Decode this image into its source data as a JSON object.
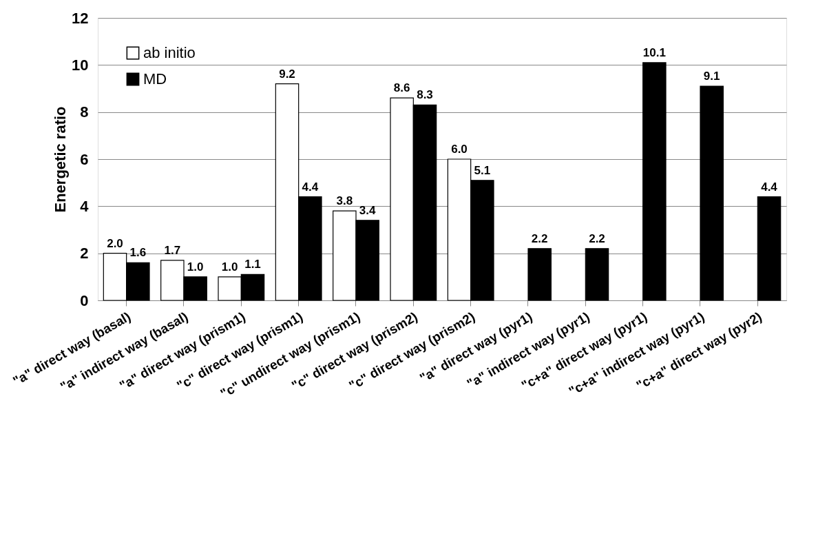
{
  "chart_data": {
    "type": "bar",
    "ylabel": "Energetic ratio",
    "categories": [
      "\"a\" direct way (basal)",
      "\"a\" indirect way (basal)",
      "\"a\" direct way (prism1)",
      "\"c\" direct way (prism1)",
      "\"c\" undirect way (prism1)",
      "\"c\" direct way (prism2)",
      "\"c\" direct way (prism2)",
      "\"a\" direct way (pyr1)",
      "\"a\" indirect way (pyr1)",
      "\"c+a\" direct way (pyr1)",
      "\"c+a\" indirect way (pyr1)",
      "\"c+a\" direct way (pyr2)"
    ],
    "series": [
      {
        "name": "ab initio",
        "color": "#ffffff",
        "values": [
          2.0,
          1.7,
          1.0,
          9.2,
          3.8,
          8.6,
          6.0,
          null,
          null,
          null,
          null,
          null
        ],
        "value_labels": [
          "2.0",
          "1.7",
          "1.0",
          "9.2",
          "3.8",
          "8.6",
          "6.0",
          null,
          null,
          null,
          null,
          null
        ]
      },
      {
        "name": "MD",
        "color": "#000000",
        "values": [
          1.6,
          1.0,
          1.1,
          4.4,
          3.4,
          8.3,
          5.1,
          2.2,
          2.2,
          10.1,
          9.1,
          4.4
        ],
        "value_labels": [
          "1.6",
          "1.0",
          "1.1",
          "4.4",
          "3.4",
          "8.3",
          "5.1",
          "2.2",
          "2.2",
          "10.1",
          "9.1",
          "4.4"
        ]
      }
    ],
    "ylim": [
      0,
      12
    ],
    "yticks": [
      0,
      2,
      4,
      6,
      8,
      10,
      12
    ],
    "grid": "y",
    "legend": "top left"
  }
}
